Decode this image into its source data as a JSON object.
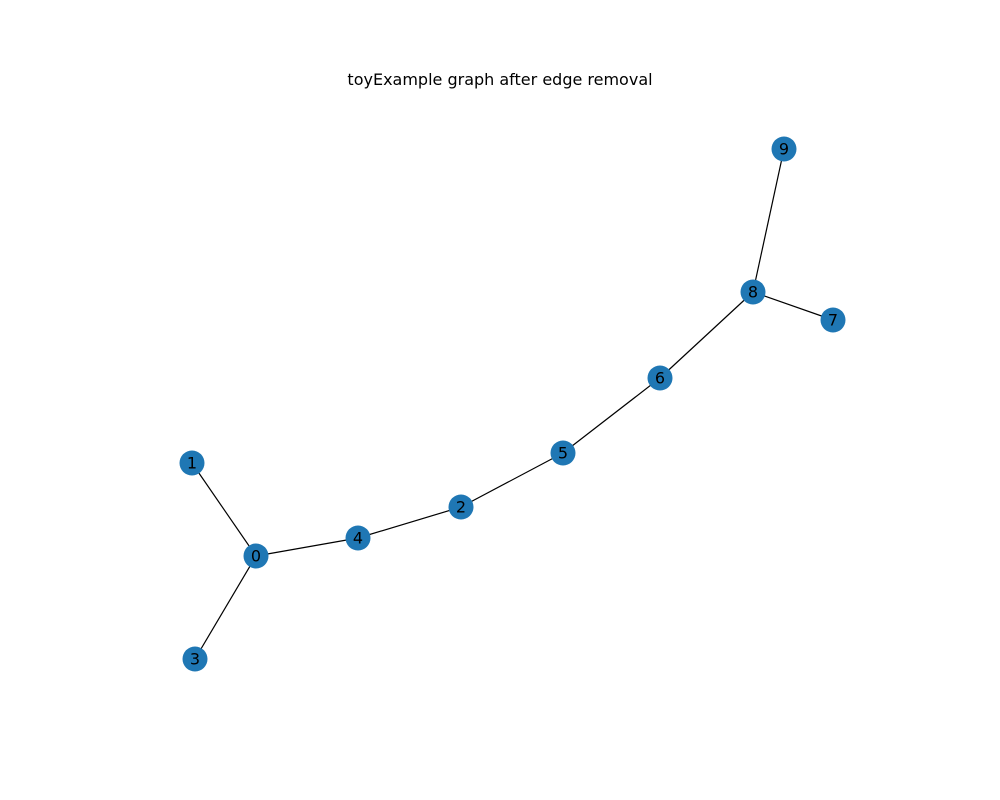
{
  "title": "toyExample graph after edge removal",
  "colors": {
    "node_fill": "#1f77b4",
    "edge": "#000000",
    "label": "#000000",
    "background": "#ffffff"
  },
  "graph": {
    "nodes": [
      "0",
      "1",
      "2",
      "3",
      "4",
      "5",
      "6",
      "7",
      "8",
      "9"
    ],
    "edges": [
      [
        "0",
        "1"
      ],
      [
        "0",
        "3"
      ],
      [
        "0",
        "4"
      ],
      [
        "4",
        "2"
      ],
      [
        "2",
        "5"
      ],
      [
        "5",
        "6"
      ],
      [
        "6",
        "8"
      ],
      [
        "8",
        "9"
      ],
      [
        "8",
        "7"
      ]
    ]
  }
}
